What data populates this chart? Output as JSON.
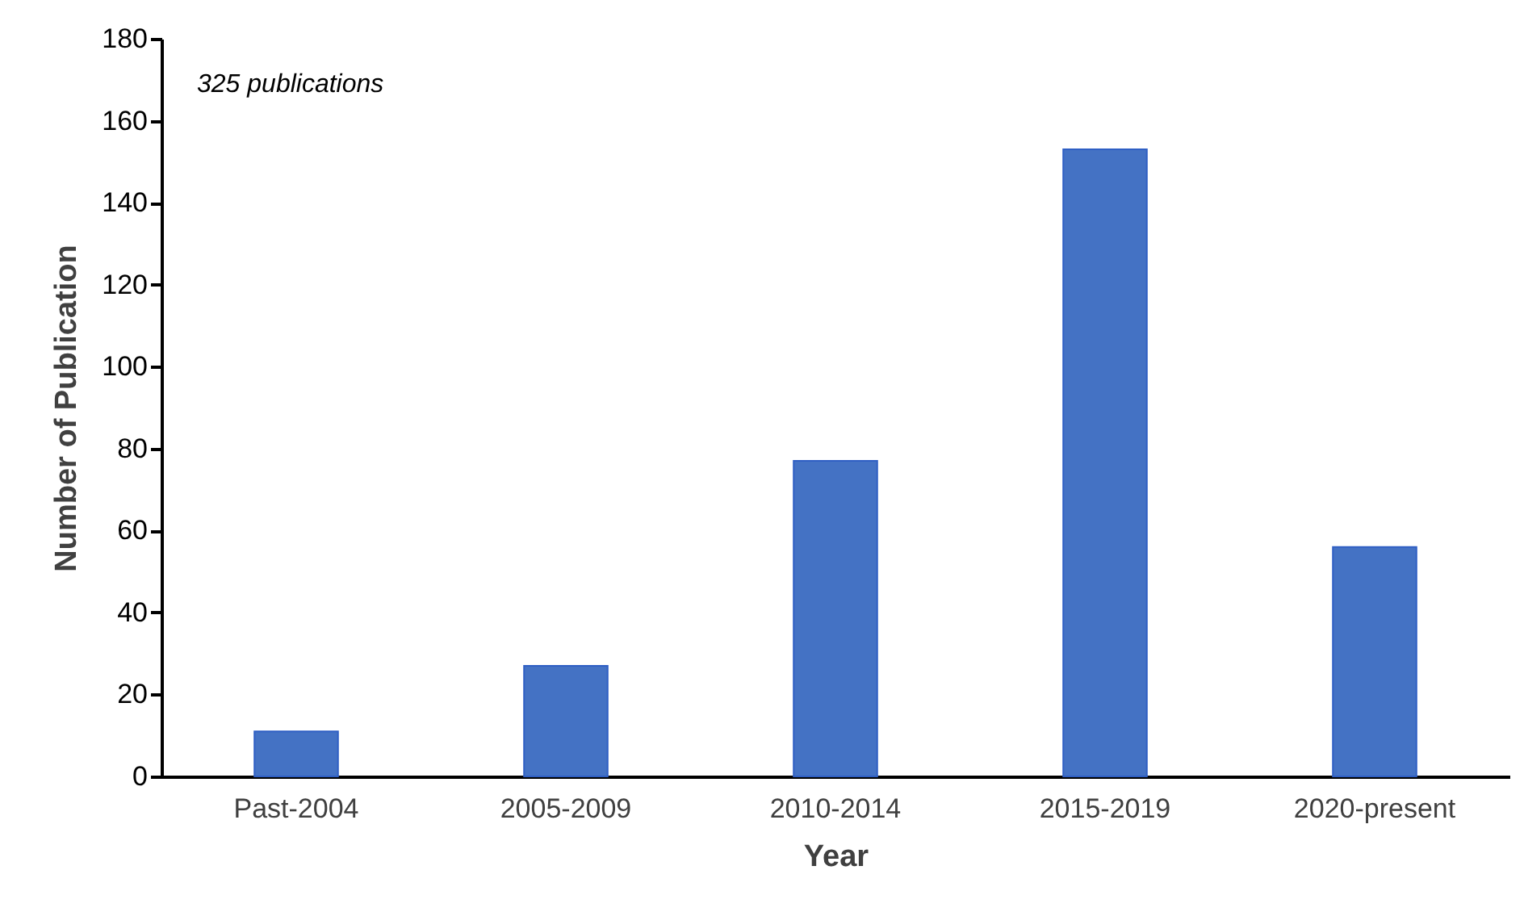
{
  "chart_data": {
    "type": "bar",
    "xlabel": "Year",
    "ylabel": "Number of Publication",
    "categories": [
      "Past-2004",
      "2005-2009",
      "2010-2014",
      "2015-2019",
      "2020-present"
    ],
    "values": [
      11,
      27,
      77,
      153,
      56
    ],
    "color": "#4472c4",
    "ylim": [
      0,
      180
    ],
    "yticks": [
      0,
      20,
      40,
      60,
      80,
      100,
      120,
      140,
      160,
      180
    ],
    "grid": false,
    "annotations": [
      "325 publications"
    ]
  }
}
